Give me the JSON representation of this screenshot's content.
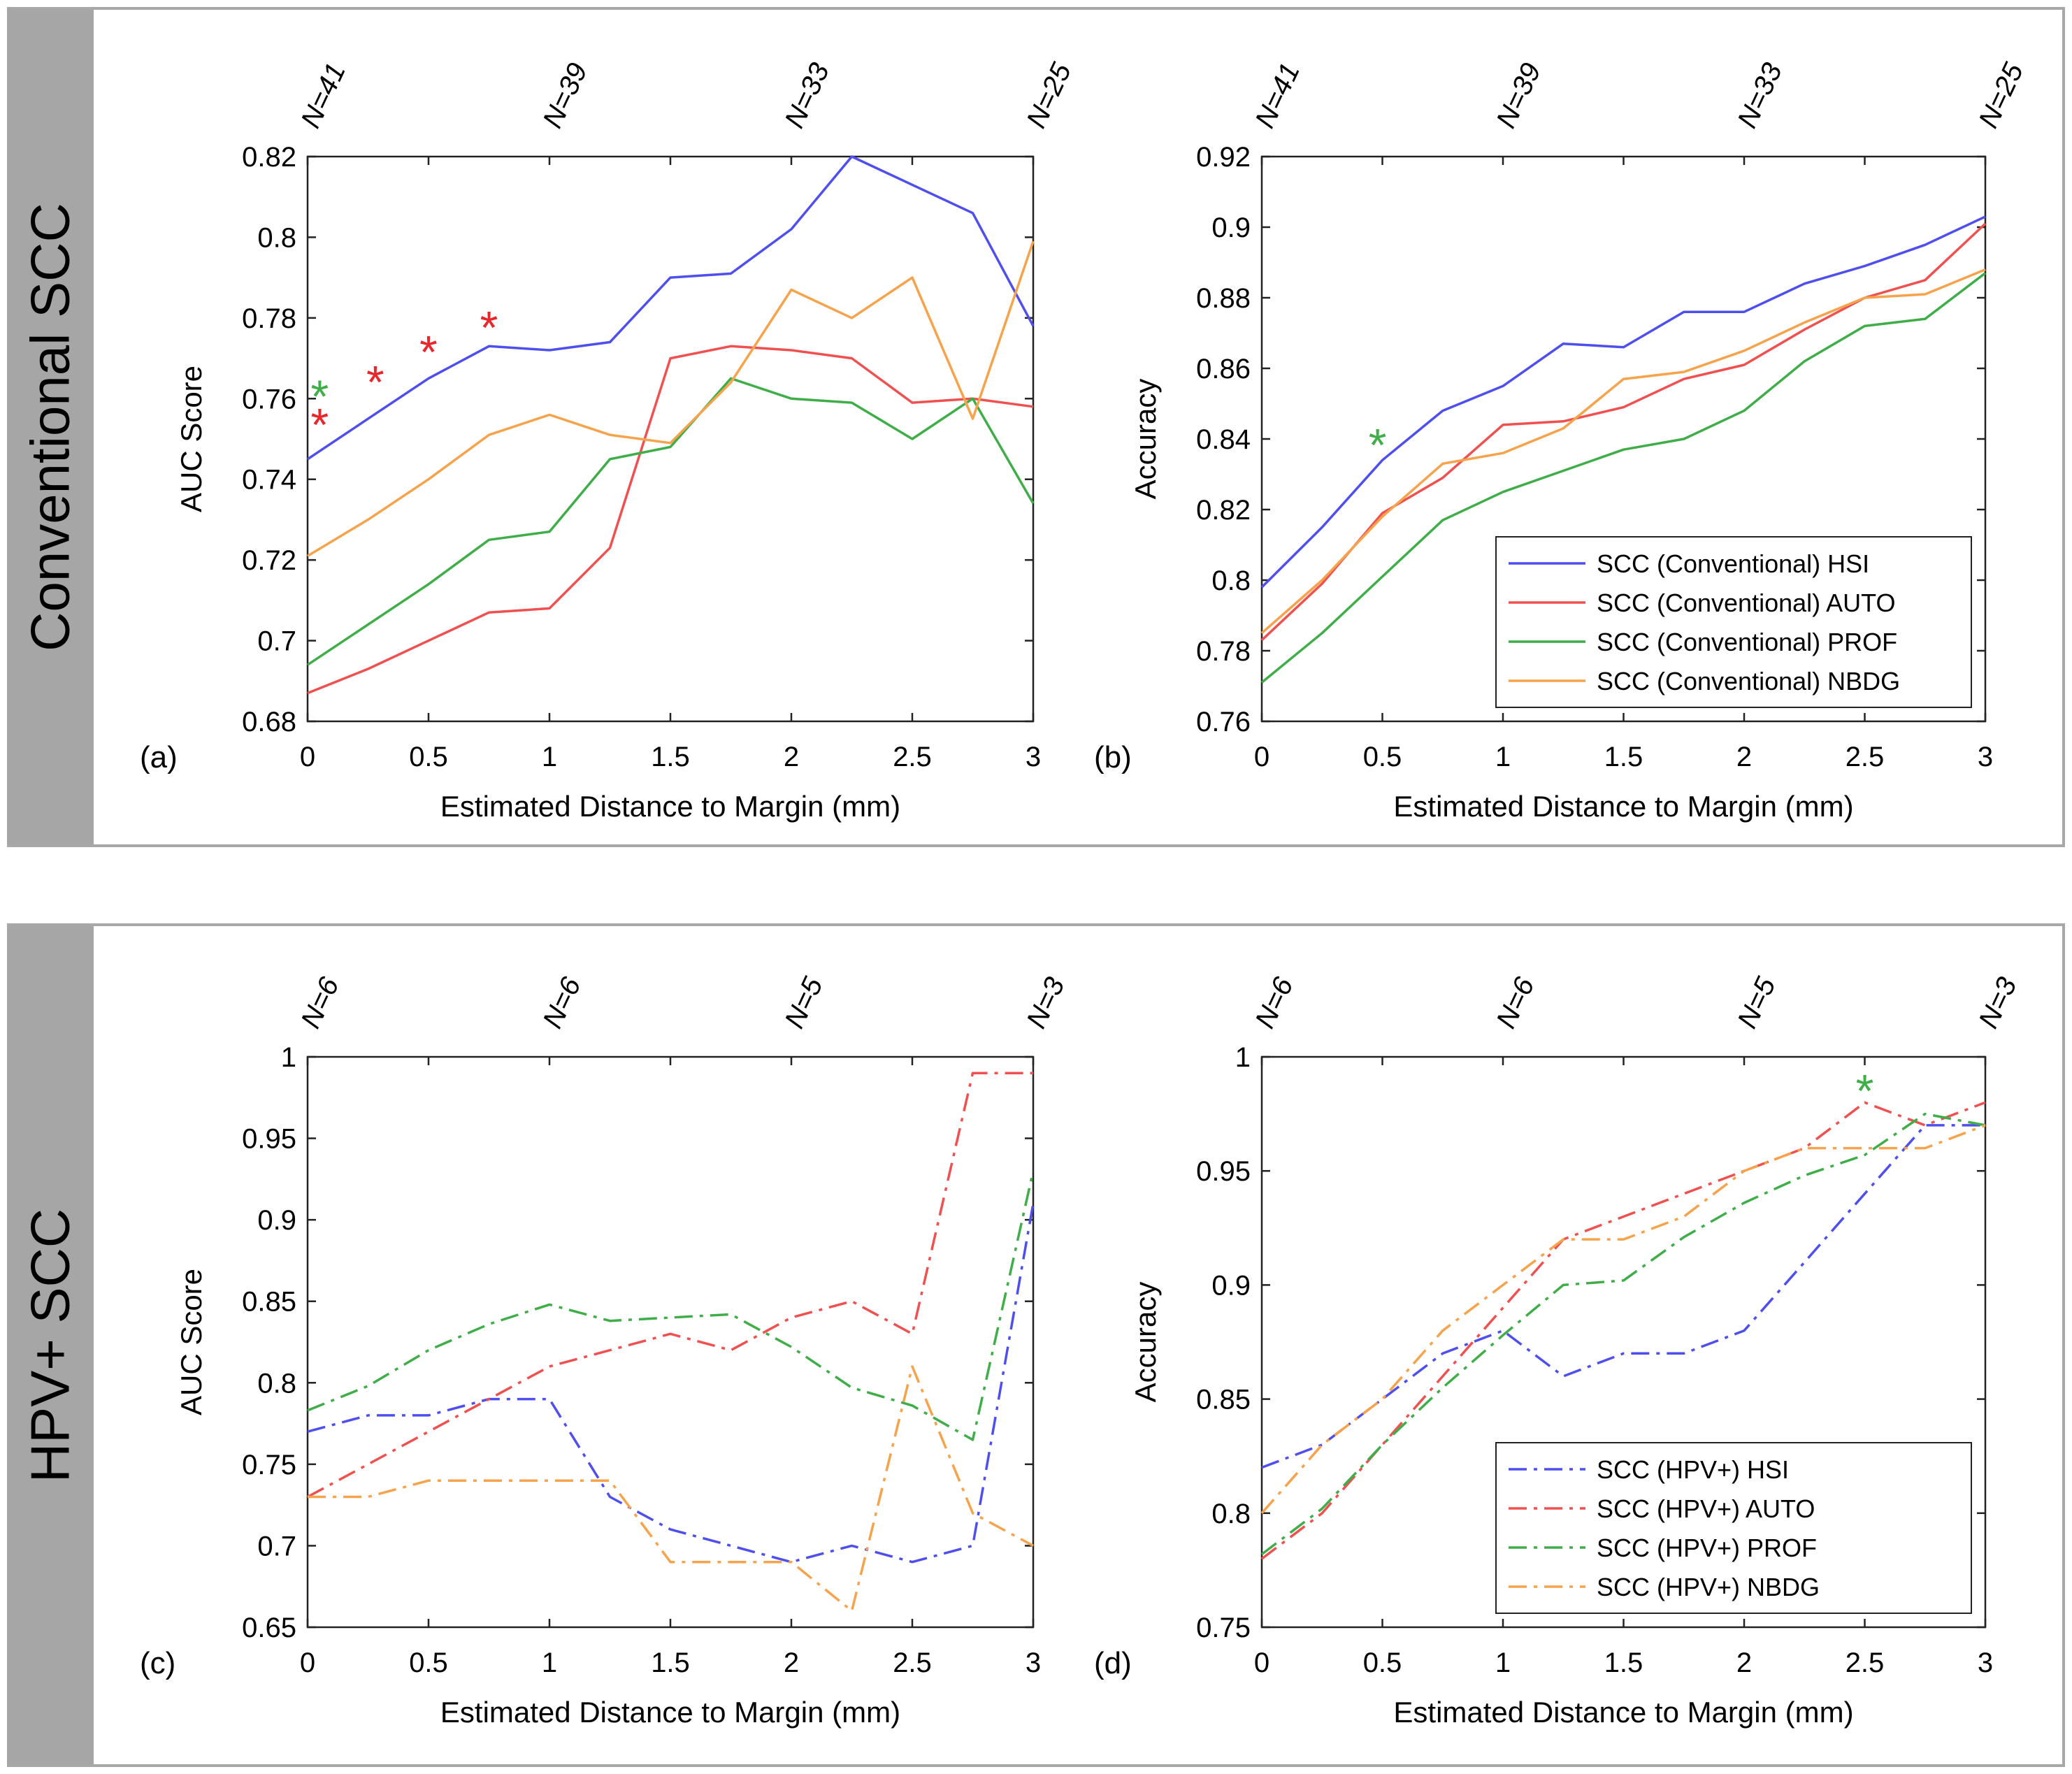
{
  "panels": [
    {
      "label": "Conventional SCC"
    },
    {
      "label": "HPV+ SCC"
    }
  ],
  "chart_data": [
    {
      "id": "a",
      "type": "line",
      "panel_label": "(a)",
      "title": "",
      "xlabel": "Estimated Distance to Margin (mm)",
      "ylabel": "AUC Score",
      "xlim": [
        0,
        3
      ],
      "ylim": [
        0.68,
        0.82
      ],
      "xticks": [
        0,
        0.5,
        1,
        1.5,
        2,
        2.5,
        3
      ],
      "xtick_labels": [
        "0",
        "0.5",
        "1",
        "1.5",
        "2",
        "2.5",
        "3"
      ],
      "yticks": [
        0.68,
        0.7,
        0.72,
        0.74,
        0.76,
        0.78,
        0.8,
        0.82
      ],
      "ytick_labels": [
        "0.68",
        "0.7",
        "0.72",
        "0.74",
        "0.76",
        "0.78",
        "0.8",
        "0.82"
      ],
      "top_ticks": [
        0,
        1,
        2,
        3
      ],
      "top_labels": [
        "N=41",
        "N=39",
        "N=33",
        "N=25"
      ],
      "x": [
        0,
        0.25,
        0.5,
        0.75,
        1,
        1.25,
        1.5,
        1.75,
        2,
        2.25,
        2.5,
        2.75,
        3
      ],
      "series": [
        {
          "name": "SCC (Conventional) HSI",
          "color": "#4f4ff0",
          "dash": "solid",
          "values": [
            0.745,
            0.755,
            0.765,
            0.773,
            0.772,
            0.774,
            0.79,
            0.791,
            0.802,
            0.82,
            0.813,
            0.806,
            0.778
          ]
        },
        {
          "name": "SCC (Conventional) AUTO",
          "color": "#f05050",
          "dash": "solid",
          "values": [
            0.687,
            0.693,
            0.7,
            0.707,
            0.708,
            0.723,
            0.77,
            0.773,
            0.772,
            0.77,
            0.759,
            0.76,
            0.758
          ]
        },
        {
          "name": "SCC (Conventional) PROF",
          "color": "#3fae49",
          "dash": "solid",
          "values": [
            0.694,
            0.704,
            0.714,
            0.725,
            0.727,
            0.745,
            0.748,
            0.765,
            0.76,
            0.759,
            0.75,
            0.76,
            0.734
          ]
        },
        {
          "name": "SCC (Conventional) NBDG",
          "color": "#f6a34c",
          "dash": "solid",
          "values": [
            0.721,
            0.73,
            0.74,
            0.751,
            0.756,
            0.751,
            0.749,
            0.764,
            0.787,
            0.78,
            0.79,
            0.755,
            0.799
          ]
        }
      ],
      "markers": [
        {
          "x": 0.05,
          "y": 0.7625,
          "color": "#3fae49",
          "symbol": "*"
        },
        {
          "x": 0.05,
          "y": 0.7555,
          "color": "#e8262b",
          "symbol": "*"
        },
        {
          "x": 0.28,
          "y": 0.766,
          "color": "#e8262b",
          "symbol": "*"
        },
        {
          "x": 0.5,
          "y": 0.7735,
          "color": "#e8262b",
          "symbol": "*"
        },
        {
          "x": 0.75,
          "y": 0.7795,
          "color": "#e8262b",
          "symbol": "*"
        }
      ],
      "legend": null
    },
    {
      "id": "b",
      "type": "line",
      "panel_label": "(b)",
      "title": "",
      "xlabel": "Estimated Distance to Margin (mm)",
      "ylabel": "Accuracy",
      "xlim": [
        0,
        3
      ],
      "ylim": [
        0.76,
        0.92
      ],
      "xticks": [
        0,
        0.5,
        1,
        1.5,
        2,
        2.5,
        3
      ],
      "xtick_labels": [
        "0",
        "0.5",
        "1",
        "1.5",
        "2",
        "2.5",
        "3"
      ],
      "yticks": [
        0.76,
        0.78,
        0.8,
        0.82,
        0.84,
        0.86,
        0.88,
        0.9,
        0.92
      ],
      "ytick_labels": [
        "0.76",
        "0.78",
        "0.8",
        "0.82",
        "0.84",
        "0.86",
        "0.88",
        "0.9",
        "0.92"
      ],
      "top_ticks": [
        0,
        1,
        2,
        3
      ],
      "top_labels": [
        "N=41",
        "N=39",
        "N=33",
        "N=25"
      ],
      "x": [
        0,
        0.25,
        0.5,
        0.75,
        1,
        1.25,
        1.5,
        1.75,
        2,
        2.25,
        2.5,
        2.75,
        3
      ],
      "series": [
        {
          "name": "SCC (Conventional) HSI",
          "color": "#4f4ff0",
          "dash": "solid",
          "values": [
            0.798,
            0.815,
            0.834,
            0.848,
            0.855,
            0.867,
            0.866,
            0.876,
            0.876,
            0.884,
            0.889,
            0.895,
            0.903
          ]
        },
        {
          "name": "SCC (Conventional) AUTO",
          "color": "#f05050",
          "dash": "solid",
          "values": [
            0.783,
            0.799,
            0.819,
            0.829,
            0.844,
            0.845,
            0.849,
            0.857,
            0.861,
            0.871,
            0.88,
            0.885,
            0.901
          ]
        },
        {
          "name": "SCC (Conventional) PROF",
          "color": "#3fae49",
          "dash": "solid",
          "values": [
            0.771,
            0.785,
            0.801,
            0.817,
            0.825,
            0.831,
            0.837,
            0.84,
            0.848,
            0.862,
            0.872,
            0.874,
            0.887
          ]
        },
        {
          "name": "SCC (Conventional) NBDG",
          "color": "#f6a34c",
          "dash": "solid",
          "values": [
            0.785,
            0.8,
            0.818,
            0.833,
            0.836,
            0.843,
            0.857,
            0.859,
            0.865,
            0.873,
            0.88,
            0.881,
            0.888
          ]
        }
      ],
      "markers": [
        {
          "x": 0.48,
          "y": 0.8405,
          "color": "#3fae49",
          "symbol": "*"
        }
      ],
      "legend": {
        "position": "bottom-right"
      }
    },
    {
      "id": "c",
      "type": "line",
      "panel_label": "(c)",
      "title": "",
      "xlabel": "Estimated Distance to Margin (mm)",
      "ylabel": "AUC Score",
      "xlim": [
        0,
        3
      ],
      "ylim": [
        0.65,
        1
      ],
      "xticks": [
        0,
        0.5,
        1,
        1.5,
        2,
        2.5,
        3
      ],
      "xtick_labels": [
        "0",
        "0.5",
        "1",
        "1.5",
        "2",
        "2.5",
        "3"
      ],
      "yticks": [
        0.65,
        0.7,
        0.75,
        0.8,
        0.85,
        0.9,
        0.95,
        1
      ],
      "ytick_labels": [
        "0.65",
        "0.7",
        "0.75",
        "0.8",
        "0.85",
        "0.9",
        "0.95",
        "1"
      ],
      "top_ticks": [
        0,
        1,
        2,
        3
      ],
      "top_labels": [
        "N=6",
        "N=6",
        "N=5",
        "N=3"
      ],
      "x": [
        0,
        0.25,
        0.5,
        0.75,
        1,
        1.25,
        1.5,
        1.75,
        2,
        2.25,
        2.5,
        2.75,
        3
      ],
      "series": [
        {
          "name": "SCC (HPV+) HSI",
          "color": "#4f4ff0",
          "dash": "dashdot",
          "values": [
            0.77,
            0.78,
            0.78,
            0.79,
            0.79,
            0.73,
            0.71,
            0.7,
            0.69,
            0.7,
            0.69,
            0.7,
            0.91
          ]
        },
        {
          "name": "SCC (HPV+) AUTO",
          "color": "#f05050",
          "dash": "dashdot",
          "values": [
            0.73,
            0.75,
            0.77,
            0.79,
            0.81,
            0.82,
            0.83,
            0.82,
            0.84,
            0.85,
            0.83,
            0.99,
            0.99
          ]
        },
        {
          "name": "SCC (HPV+) PROF",
          "color": "#3fae49",
          "dash": "dashdot",
          "values": [
            0.783,
            0.798,
            0.82,
            0.836,
            0.848,
            0.838,
            0.84,
            0.842,
            0.822,
            0.797,
            0.786,
            0.765,
            0.93
          ]
        },
        {
          "name": "SCC (HPV+) NBDG",
          "color": "#f6a34c",
          "dash": "dashdot",
          "values": [
            0.73,
            0.73,
            0.74,
            0.74,
            0.74,
            0.74,
            0.69,
            0.69,
            0.69,
            0.66,
            0.81,
            0.72,
            0.7
          ]
        }
      ],
      "markers": [],
      "legend": null
    },
    {
      "id": "d",
      "type": "line",
      "panel_label": "(d)",
      "title": "",
      "xlabel": "Estimated Distance to Margin (mm)",
      "ylabel": "Accuracy",
      "xlim": [
        0,
        3
      ],
      "ylim": [
        0.75,
        1
      ],
      "xticks": [
        0,
        0.5,
        1,
        1.5,
        2,
        2.5,
        3
      ],
      "xtick_labels": [
        "0",
        "0.5",
        "1",
        "1.5",
        "2",
        "2.5",
        "3"
      ],
      "yticks": [
        0.75,
        0.8,
        0.85,
        0.9,
        0.95,
        1
      ],
      "ytick_labels": [
        "0.75",
        "0.8",
        "0.85",
        "0.9",
        "0.95",
        "1"
      ],
      "top_ticks": [
        0,
        1,
        2,
        3
      ],
      "top_labels": [
        "N=6",
        "N=6",
        "N=5",
        "N=3"
      ],
      "x": [
        0,
        0.25,
        0.5,
        0.75,
        1,
        1.25,
        1.5,
        1.75,
        2,
        2.25,
        2.5,
        2.75,
        3
      ],
      "series": [
        {
          "name": "SCC (HPV+) HSI",
          "color": "#4f4ff0",
          "dash": "dashdot",
          "values": [
            0.82,
            0.83,
            0.85,
            0.87,
            0.88,
            0.86,
            0.87,
            0.87,
            0.88,
            0.91,
            0.94,
            0.97,
            0.97
          ]
        },
        {
          "name": "SCC (HPV+) AUTO",
          "color": "#f05050",
          "dash": "dashdot",
          "values": [
            0.78,
            0.8,
            0.83,
            0.86,
            0.89,
            0.92,
            0.93,
            0.94,
            0.95,
            0.96,
            0.98,
            0.97,
            0.98
          ]
        },
        {
          "name": "SCC (HPV+) PROF",
          "color": "#3fae49",
          "dash": "dashdot",
          "values": [
            0.782,
            0.802,
            0.83,
            0.855,
            0.878,
            0.9,
            0.902,
            0.921,
            0.936,
            0.948,
            0.957,
            0.975,
            0.97
          ]
        },
        {
          "name": "SCC (HPV+) NBDG",
          "color": "#f6a34c",
          "dash": "dashdot",
          "values": [
            0.8,
            0.83,
            0.85,
            0.88,
            0.9,
            0.92,
            0.92,
            0.93,
            0.95,
            0.96,
            0.96,
            0.96,
            0.97
          ]
        }
      ],
      "markers": [
        {
          "x": 2.5,
          "y": 0.9885,
          "color": "#3fae49",
          "symbol": "*"
        }
      ],
      "legend": {
        "position": "bottom-right"
      }
    }
  ]
}
